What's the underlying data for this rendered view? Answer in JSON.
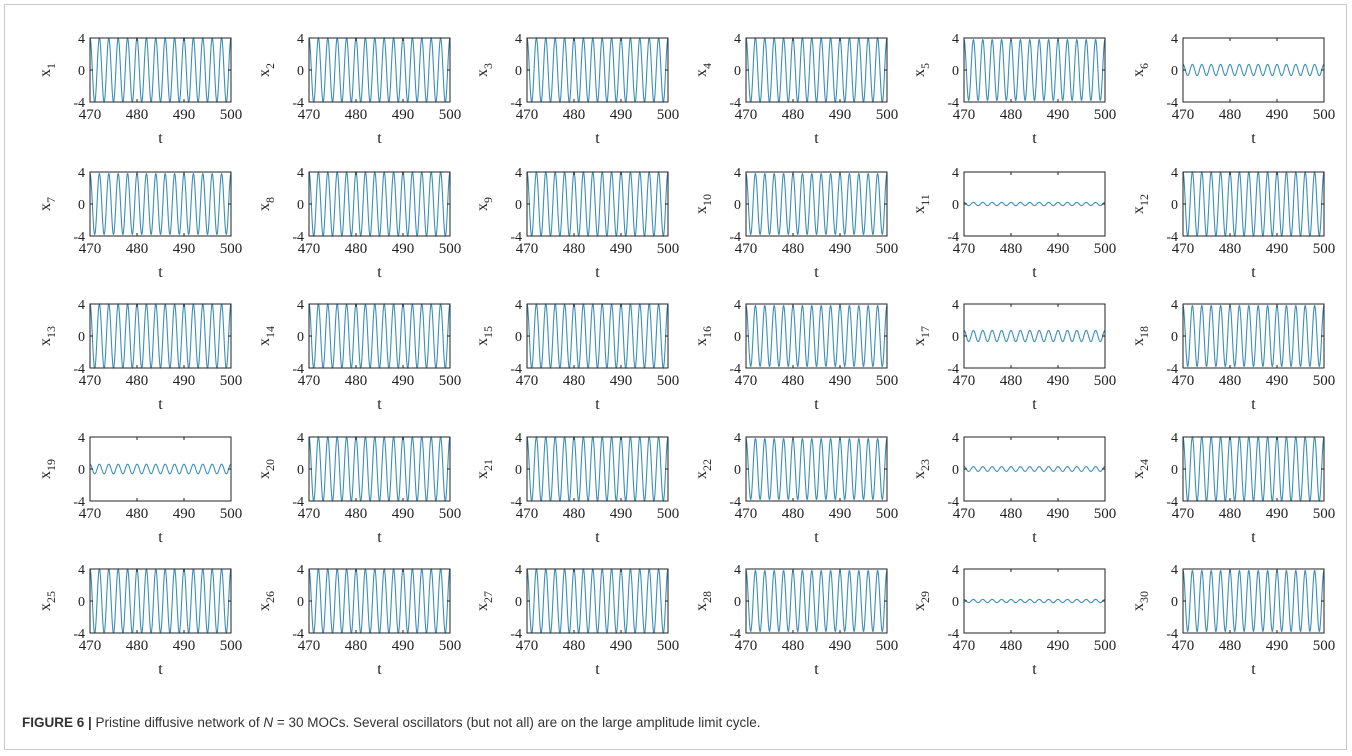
{
  "figure": {
    "label": "FIGURE 6 |",
    "caption_pre": " Pristine diffusive network of ",
    "caption_var": "N",
    "caption_post": " = 30 MOCs. Several oscillators (but not all) are on the large amplitude limit cycle."
  },
  "chart_data": {
    "type": "line",
    "layout": "grid 5 rows x 6 columns",
    "xlabel": "t",
    "xlim": [
      470,
      500
    ],
    "ylim": [
      -4,
      4
    ],
    "xticks": [
      470,
      480,
      490,
      500
    ],
    "yticks": [
      4,
      0,
      -4
    ],
    "line_color": "#3b8fb8",
    "signal_period_t": 2,
    "panels": [
      {
        "ylabel": "x",
        "sub": "1",
        "amplitude": 4.0
      },
      {
        "ylabel": "x",
        "sub": "2",
        "amplitude": 4.0
      },
      {
        "ylabel": "x",
        "sub": "3",
        "amplitude": 4.0
      },
      {
        "ylabel": "x",
        "sub": "4",
        "amplitude": 4.0
      },
      {
        "ylabel": "x",
        "sub": "5",
        "amplitude": 3.8
      },
      {
        "ylabel": "x",
        "sub": "6",
        "amplitude": 0.7
      },
      {
        "ylabel": "x",
        "sub": "7",
        "amplitude": 3.8
      },
      {
        "ylabel": "x",
        "sub": "8",
        "amplitude": 4.0
      },
      {
        "ylabel": "x",
        "sub": "9",
        "amplitude": 4.0
      },
      {
        "ylabel": "x",
        "sub": "10",
        "amplitude": 3.8
      },
      {
        "ylabel": "x",
        "sub": "11",
        "amplitude": 0.2
      },
      {
        "ylabel": "x",
        "sub": "12",
        "amplitude": 4.0
      },
      {
        "ylabel": "x",
        "sub": "13",
        "amplitude": 4.0
      },
      {
        "ylabel": "x",
        "sub": "14",
        "amplitude": 4.0
      },
      {
        "ylabel": "x",
        "sub": "15",
        "amplitude": 4.0
      },
      {
        "ylabel": "x",
        "sub": "16",
        "amplitude": 3.8
      },
      {
        "ylabel": "x",
        "sub": "17",
        "amplitude": 0.7
      },
      {
        "ylabel": "x",
        "sub": "18",
        "amplitude": 3.8
      },
      {
        "ylabel": "x",
        "sub": "19",
        "amplitude": 0.6
      },
      {
        "ylabel": "x",
        "sub": "20",
        "amplitude": 4.0
      },
      {
        "ylabel": "x",
        "sub": "21",
        "amplitude": 4.0
      },
      {
        "ylabel": "x",
        "sub": "22",
        "amplitude": 3.8
      },
      {
        "ylabel": "x",
        "sub": "23",
        "amplitude": 0.3
      },
      {
        "ylabel": "x",
        "sub": "24",
        "amplitude": 4.0
      },
      {
        "ylabel": "x",
        "sub": "25",
        "amplitude": 4.0
      },
      {
        "ylabel": "x",
        "sub": "26",
        "amplitude": 4.0
      },
      {
        "ylabel": "x",
        "sub": "27",
        "amplitude": 4.0
      },
      {
        "ylabel": "x",
        "sub": "28",
        "amplitude": 3.8
      },
      {
        "ylabel": "x",
        "sub": "29",
        "amplitude": 0.2
      },
      {
        "ylabel": "x",
        "sub": "30",
        "amplitude": 3.8
      }
    ]
  }
}
